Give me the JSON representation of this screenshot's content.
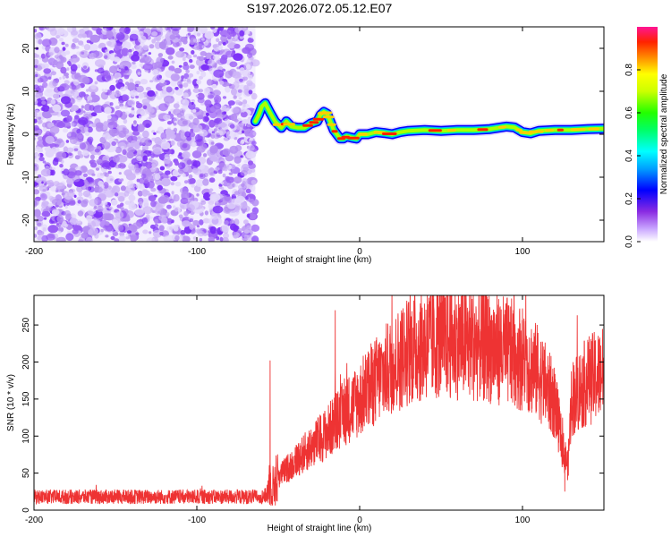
{
  "chart_data": [
    {
      "type": "heatmap",
      "title": "S197.2026.072.05.12.E07",
      "xlabel": "Height of straight line (km)",
      "ylabel": "Frequency (Hz)",
      "xlim": [
        -200,
        150
      ],
      "ylim": [
        -25,
        25
      ],
      "xticks": [
        -200,
        -100,
        0,
        100
      ],
      "xtick_labels": [
        "-200",
        "-100",
        "0",
        "100"
      ],
      "yticks": [
        -20,
        -10,
        0,
        10,
        20
      ],
      "ytick_labels": [
        "-20",
        "-10",
        "0",
        "10",
        "20"
      ],
      "noise_region_x": [
        -200,
        -64
      ],
      "tracked_line": {
        "x": [
          -64,
          -62,
          -60,
          -58,
          -55,
          -52,
          -48,
          -45,
          -42,
          -38,
          -34,
          -30,
          -26,
          -24,
          -22,
          -20,
          -18,
          -16,
          -14,
          -12,
          -10,
          -8,
          -5,
          -2,
          0,
          5,
          10,
          15,
          20,
          25,
          30,
          40,
          50,
          60,
          70,
          80,
          85,
          90,
          95,
          100,
          105,
          110,
          120,
          130,
          140,
          150
        ],
        "y": [
          3,
          4.5,
          6.5,
          7.2,
          5,
          3,
          1.5,
          3,
          1.8,
          1.5,
          1.5,
          2.5,
          3,
          4.5,
          5.2,
          4.8,
          3,
          1,
          0,
          -1,
          -1,
          -0.5,
          -0.8,
          -1,
          0,
          0,
          0.5,
          0.3,
          0,
          0.5,
          0.8,
          1,
          0.8,
          1,
          1,
          1.2,
          1.5,
          1.8,
          1.6,
          0.5,
          0.2,
          0.8,
          1,
          1,
          1.2,
          1.3
        ]
      },
      "colorbar": {
        "label": "Normalized spectral amplitude",
        "range": [
          0,
          1
        ],
        "ticks": [
          0,
          0.2,
          0.4,
          0.6,
          0.8
        ],
        "tick_labels": [
          "0.0",
          "0.2",
          "0.4",
          "0.6",
          "0.8"
        ]
      }
    },
    {
      "type": "line",
      "title": "",
      "xlabel": "Height of straight line (km)",
      "ylabel": "SNR (10 * v/v)",
      "xlim": [
        -200,
        150
      ],
      "ylim": [
        0,
        290
      ],
      "xticks": [
        -200,
        -100,
        0,
        100
      ],
      "xtick_labels": [
        "-200",
        "-100",
        "0",
        "100"
      ],
      "yticks": [
        0,
        50,
        100,
        150,
        200,
        250
      ],
      "ytick_labels": [
        "0",
        "50",
        "100",
        "150",
        "200",
        "250"
      ],
      "series": [
        {
          "name": "SNR",
          "color": "#ee3333",
          "envelope": {
            "x": [
              -200,
              -150,
              -100,
              -60,
              -57,
              -55,
              -54,
              -50,
              -40,
              -30,
              -20,
              -10,
              0,
              10,
              20,
              30,
              40,
              50,
              60,
              70,
              80,
              90,
              100,
              110,
              120,
              125,
              128,
              130,
              140,
              150
            ],
            "y": [
              18,
              18,
              18,
              18,
              20,
              45,
              30,
              45,
              65,
              85,
              105,
              130,
              150,
              175,
              195,
              215,
              225,
              230,
              228,
              225,
              220,
              215,
              205,
              185,
              145,
              80,
              60,
              150,
              175,
              185
            ]
          },
          "spikes": [
            {
              "x": -55,
              "y": 202
            },
            {
              "x": -15,
              "y": 270
            },
            {
              "x": 78,
              "y": 290
            },
            {
              "x": 126,
              "y": 25
            }
          ]
        }
      ]
    }
  ],
  "colors": {
    "line": "#ee3333",
    "noise_palette": [
      "#7b2ff7",
      "#9a5cf5",
      "#b48cf2",
      "#cdb4f7",
      "#e2d6fb"
    ]
  }
}
